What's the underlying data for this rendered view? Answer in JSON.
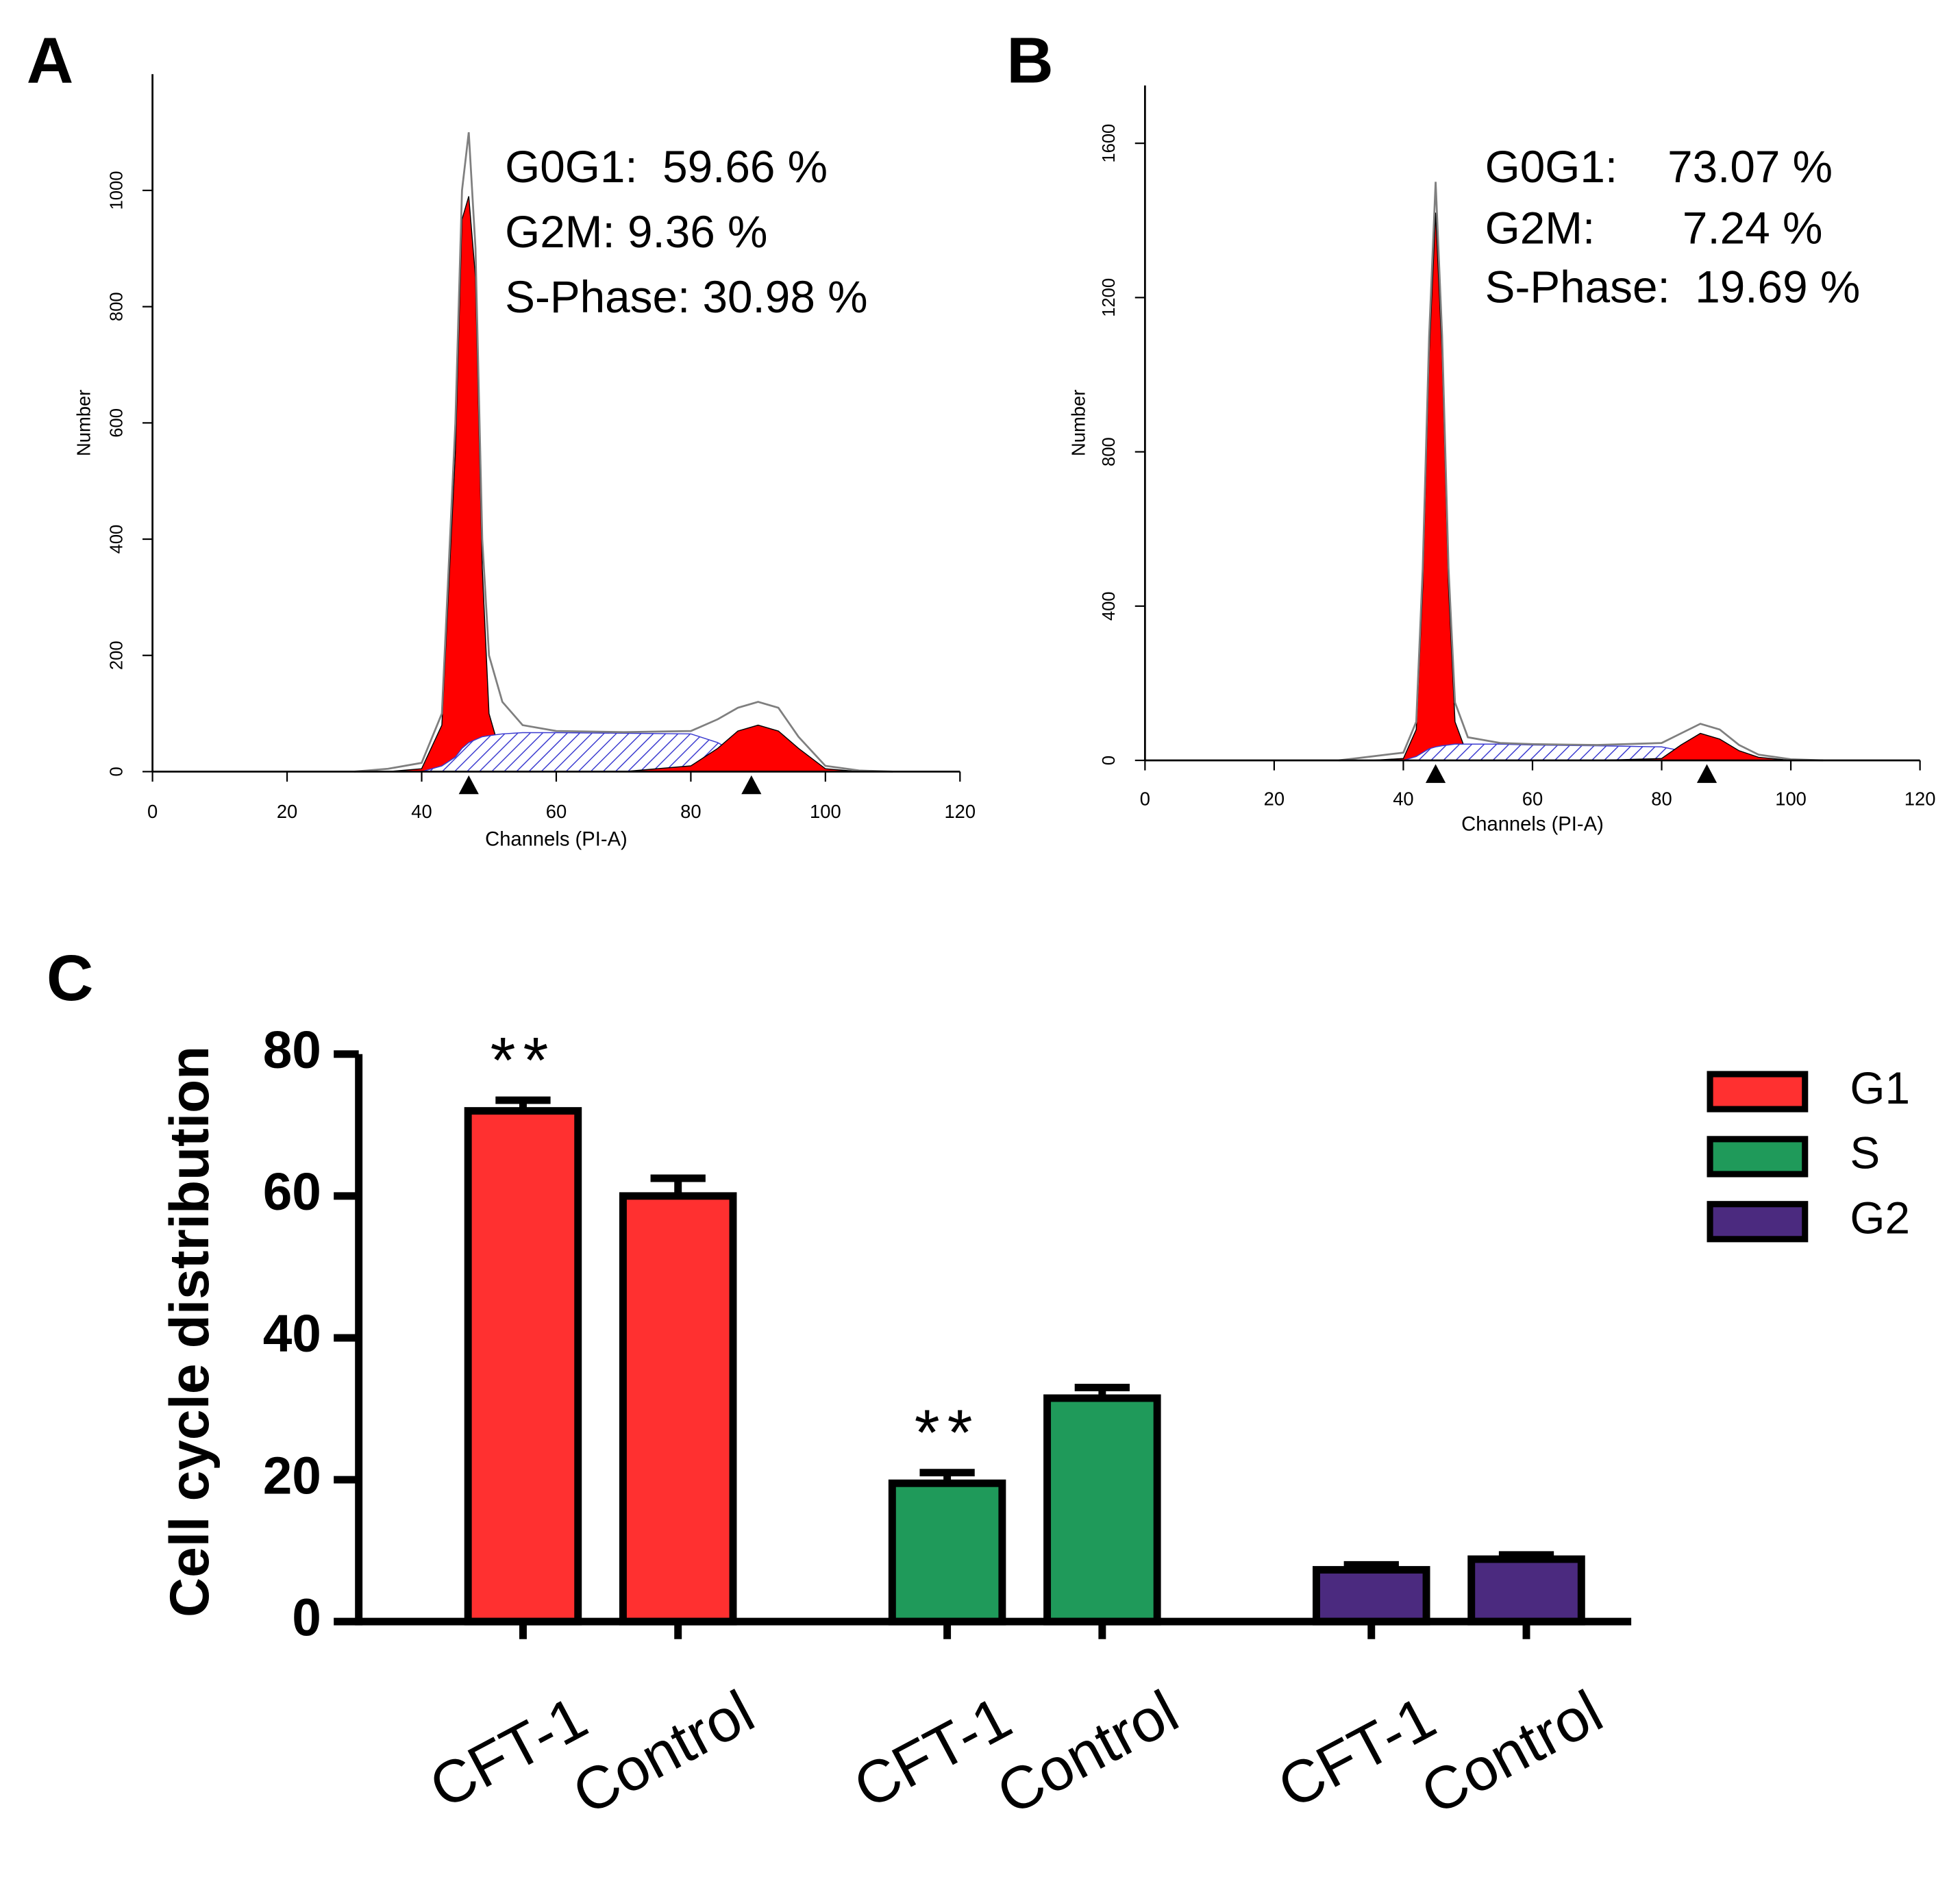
{
  "chart_data": [
    {
      "type": "area",
      "panel": "A",
      "xlabel": "Channels (PI-A)",
      "ylabel": "Number",
      "x": [
        30,
        35,
        40,
        43,
        45,
        46,
        47,
        48,
        49,
        50,
        52,
        55,
        60,
        70,
        80,
        84,
        87,
        90,
        93,
        96,
        100,
        105,
        110
      ],
      "series": [
        {
          "style": "line",
          "color": "#7f7f7f",
          "values": [
            0,
            5,
            15,
            100,
            600,
            1000,
            1100,
            900,
            400,
            200,
            120,
            80,
            70,
            68,
            70,
            90,
            110,
            120,
            110,
            60,
            10,
            2,
            0
          ]
        },
        {
          "style": "area",
          "color": "#ff0000",
          "values": [
            0,
            0,
            5,
            80,
            550,
            950,
            990,
            850,
            350,
            100,
            20,
            0,
            0,
            0,
            0,
            0,
            0,
            0,
            0,
            0,
            0,
            0,
            0
          ]
        },
        {
          "style": "hatch",
          "color": "#3a3ad0",
          "values": [
            0,
            0,
            0,
            10,
            25,
            40,
            50,
            55,
            60,
            62,
            65,
            67,
            67,
            66,
            65,
            50,
            30,
            15,
            5,
            0,
            0,
            0,
            0
          ]
        },
        {
          "style": "area",
          "color": "#ff0000",
          "values": [
            0,
            0,
            0,
            0,
            0,
            0,
            0,
            0,
            0,
            0,
            0,
            0,
            0,
            0,
            10,
            40,
            70,
            80,
            70,
            40,
            5,
            0,
            0
          ]
        }
      ],
      "markers": [
        47,
        89
      ],
      "annotations": [
        "G0G1:  59.66 %",
        "G2M: 9.36 %",
        "S-Phase: 30.98 %"
      ],
      "xlim": [
        0,
        120
      ],
      "xticks": [
        0,
        20,
        40,
        60,
        80,
        100,
        120
      ],
      "ylim": [
        0,
        1200
      ],
      "yticks": [
        0,
        200,
        400,
        600,
        800,
        1000
      ]
    },
    {
      "type": "area",
      "panel": "B",
      "xlabel": "Channels (PI-A)",
      "ylabel": "Number",
      "x": [
        30,
        35,
        40,
        42,
        43,
        44,
        45,
        46,
        47,
        48,
        50,
        55,
        60,
        70,
        80,
        83,
        86,
        89,
        92,
        95,
        100,
        105
      ],
      "series": [
        {
          "style": "line",
          "color": "#7f7f7f",
          "values": [
            0,
            10,
            20,
            100,
            500,
            1100,
            1500,
            1100,
            500,
            150,
            60,
            45,
            42,
            40,
            45,
            70,
            95,
            80,
            40,
            15,
            3,
            0
          ]
        },
        {
          "style": "area",
          "color": "#ff0000",
          "values": [
            0,
            0,
            5,
            80,
            450,
            1050,
            1420,
            1050,
            450,
            100,
            10,
            0,
            0,
            0,
            0,
            0,
            0,
            0,
            0,
            0,
            0,
            0
          ]
        },
        {
          "style": "hatch",
          "color": "#3a3ad0",
          "values": [
            0,
            0,
            0,
            10,
            20,
            30,
            35,
            38,
            40,
            42,
            42,
            42,
            40,
            38,
            35,
            25,
            15,
            5,
            0,
            0,
            0,
            0
          ]
        },
        {
          "style": "area",
          "color": "#ff0000",
          "values": [
            0,
            0,
            0,
            0,
            0,
            0,
            0,
            0,
            0,
            0,
            0,
            0,
            0,
            0,
            5,
            40,
            70,
            55,
            25,
            8,
            0,
            0
          ]
        }
      ],
      "markers": [
        45,
        87
      ],
      "annotations": [
        "G0G1:    73.07 %",
        "G2M:       7.24 %",
        "S-Phase:  19.69 %"
      ],
      "xlim": [
        0,
        120
      ],
      "xticks": [
        0,
        20,
        40,
        60,
        80,
        100,
        120
      ],
      "ylim": [
        0,
        1750
      ],
      "yticks": [
        0,
        400,
        800,
        1200,
        1600
      ]
    },
    {
      "type": "bar",
      "panel": "C",
      "ylabel": "Cell cycle distribution",
      "categories": [
        "CFT-1",
        "Control"
      ],
      "series": [
        {
          "name": "G1",
          "color": "#ff3030",
          "values": [
            72,
            60
          ],
          "errors": [
            1.5,
            2.5
          ],
          "annotations": [
            "**",
            null
          ]
        },
        {
          "name": "S",
          "color": "#1f9a5a",
          "values": [
            19.5,
            31.5
          ],
          "errors": [
            1.5,
            1.5
          ],
          "annotations": [
            "**",
            null
          ]
        },
        {
          "name": "G2",
          "color": "#4b2a7f",
          "values": [
            7.3,
            8.8
          ],
          "errors": [
            0.7,
            0.6
          ],
          "annotations": [
            null,
            null
          ]
        }
      ],
      "ylim": [
        0,
        80
      ],
      "yticks": [
        0,
        20,
        40,
        60,
        80
      ]
    }
  ]
}
